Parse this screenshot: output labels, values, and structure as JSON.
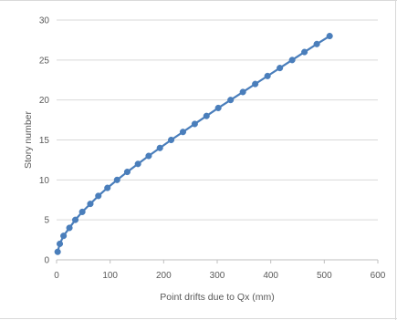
{
  "chart_data": {
    "type": "line",
    "title": "",
    "xlabel": "Point drifts due to Qx (mm)",
    "ylabel": "Story number",
    "xlim": [
      0,
      600
    ],
    "ylim": [
      0,
      30
    ],
    "x_ticks": [
      0,
      100,
      200,
      300,
      400,
      500,
      600
    ],
    "y_ticks": [
      0,
      5,
      10,
      15,
      20,
      25,
      30
    ],
    "grid": "horizontal",
    "legend": "none",
    "series": [
      {
        "color": "#4a7ebb",
        "marker": "circle",
        "points": [
          {
            "x": 2,
            "y": 1
          },
          {
            "x": 6,
            "y": 2
          },
          {
            "x": 13,
            "y": 3
          },
          {
            "x": 24,
            "y": 4
          },
          {
            "x": 35,
            "y": 5
          },
          {
            "x": 48,
            "y": 6
          },
          {
            "x": 63,
            "y": 7
          },
          {
            "x": 78,
            "y": 8
          },
          {
            "x": 95,
            "y": 9
          },
          {
            "x": 113,
            "y": 10
          },
          {
            "x": 132,
            "y": 11
          },
          {
            "x": 152,
            "y": 12
          },
          {
            "x": 172,
            "y": 13
          },
          {
            "x": 193,
            "y": 14
          },
          {
            "x": 214,
            "y": 15
          },
          {
            "x": 236,
            "y": 16
          },
          {
            "x": 258,
            "y": 17
          },
          {
            "x": 280,
            "y": 18
          },
          {
            "x": 302,
            "y": 19
          },
          {
            "x": 325,
            "y": 20
          },
          {
            "x": 348,
            "y": 21
          },
          {
            "x": 371,
            "y": 22
          },
          {
            "x": 394,
            "y": 23
          },
          {
            "x": 417,
            "y": 24
          },
          {
            "x": 440,
            "y": 25
          },
          {
            "x": 463,
            "y": 26
          },
          {
            "x": 486,
            "y": 27
          },
          {
            "x": 510,
            "y": 28
          }
        ]
      }
    ]
  }
}
